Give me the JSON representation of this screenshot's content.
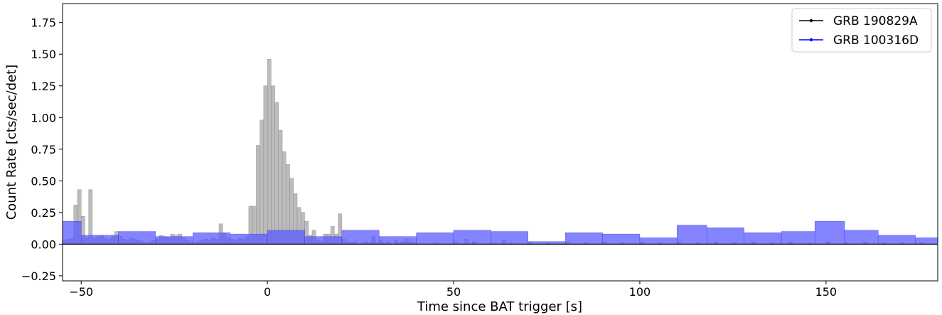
{
  "chart_data": {
    "type": "area",
    "xlabel": "Time since BAT trigger [s]",
    "ylabel": "Count Rate [cts/sec/det]",
    "xlim": [
      -55,
      180
    ],
    "ylim": [
      -0.29,
      1.9
    ],
    "xticks": [
      -50,
      0,
      50,
      100,
      150
    ],
    "xtick_labels": [
      "−50",
      "0",
      "50",
      "100",
      "150"
    ],
    "yticks": [
      -0.25,
      0,
      0.25,
      0.5,
      0.75,
      1.0,
      1.25,
      1.5,
      1.75
    ],
    "ytick_labels": [
      "−0.25",
      "0.00",
      "0.25",
      "0.50",
      "0.75",
      "1.00",
      "1.25",
      "1.50",
      "1.75"
    ],
    "grid": false,
    "legend_position": "top-right",
    "series": [
      {
        "name": "GRB 190829A",
        "fill_color": "#a0a0a0",
        "line_color": "#000000",
        "bin_width": 1.024,
        "bins": [
          [
            -55,
            0.03
          ],
          [
            -54,
            0.04
          ],
          [
            -53,
            0.05
          ],
          [
            -52,
            0.31
          ],
          [
            -51,
            0.43
          ],
          [
            -50,
            0.22
          ],
          [
            -49,
            0.05
          ],
          [
            -48,
            0.43
          ],
          [
            -47,
            0.05
          ],
          [
            -46,
            0.06
          ],
          [
            -45,
            0.07
          ],
          [
            -44,
            0.05
          ],
          [
            -43,
            0.04
          ],
          [
            -42,
            0.06
          ],
          [
            -41,
            0.1
          ],
          [
            -40,
            0.06
          ],
          [
            -39,
            0.04
          ],
          [
            -38,
            0.03
          ],
          [
            -37,
            0.05
          ],
          [
            -36,
            0.04
          ],
          [
            -35,
            0.03
          ],
          [
            -34,
            0.02
          ],
          [
            -33,
            0.01
          ],
          [
            -32,
            0.02
          ],
          [
            -31,
            0.03
          ],
          [
            -30,
            0.04
          ],
          [
            -29,
            0.07
          ],
          [
            -28,
            0.06
          ],
          [
            -27,
            0.05
          ],
          [
            -26,
            0.08
          ],
          [
            -25,
            0.07
          ],
          [
            -24,
            0.08
          ],
          [
            -23,
            0.05
          ],
          [
            -22,
            0.03
          ],
          [
            -21,
            0.02
          ],
          [
            -20,
            0.01
          ],
          [
            -19,
            0.02
          ],
          [
            -18,
            0.03
          ],
          [
            -17,
            0.04
          ],
          [
            -16,
            0.03
          ],
          [
            -15,
            0.05
          ],
          [
            -14,
            0.04
          ],
          [
            -13,
            0.16
          ],
          [
            -12,
            0.09
          ],
          [
            -11,
            0.05
          ],
          [
            -10,
            0.04
          ],
          [
            -9,
            0.03
          ],
          [
            -8,
            0.05
          ],
          [
            -7,
            0.04
          ],
          [
            -6,
            0.06
          ],
          [
            -5,
            0.3
          ],
          [
            -4,
            0.3
          ],
          [
            -3,
            0.78
          ],
          [
            -2,
            0.98
          ],
          [
            -1,
            1.25
          ],
          [
            0,
            1.46
          ],
          [
            1,
            1.25
          ],
          [
            2,
            1.12
          ],
          [
            3,
            0.9
          ],
          [
            4,
            0.73
          ],
          [
            5,
            0.63
          ],
          [
            6,
            0.52
          ],
          [
            7,
            0.4
          ],
          [
            8,
            0.29
          ],
          [
            9,
            0.25
          ],
          [
            10,
            0.18
          ],
          [
            11,
            0.07
          ],
          [
            12,
            0.11
          ],
          [
            13,
            0.03
          ],
          [
            14,
            0.02
          ],
          [
            15,
            0.08
          ],
          [
            16,
            0.08
          ],
          [
            17,
            0.14
          ],
          [
            18,
            0.08
          ],
          [
            19,
            0.24
          ],
          [
            20,
            0.04
          ],
          [
            21,
            0.02
          ],
          [
            22,
            0.01
          ],
          [
            23,
            0.02
          ],
          [
            24,
            0.0
          ],
          [
            25,
            0.01
          ],
          [
            26,
            0.02
          ],
          [
            27,
            0.01
          ],
          [
            28,
            0.06
          ],
          [
            29,
            0.01
          ],
          [
            30,
            0.03
          ],
          [
            31,
            0.01
          ],
          [
            32,
            0.02
          ],
          [
            33,
            0.0
          ],
          [
            34,
            0.03
          ],
          [
            35,
            0.01
          ],
          [
            36,
            0.02
          ],
          [
            37,
            0.04
          ],
          [
            38,
            0.02
          ],
          [
            39,
            0.01
          ],
          [
            40,
            0.0
          ],
          [
            45,
            0.01
          ],
          [
            50,
            0.02
          ],
          [
            53,
            0.04
          ],
          [
            55,
            0.02
          ],
          [
            60,
            0.01
          ],
          [
            63,
            0.03
          ],
          [
            65,
            0.01
          ],
          [
            70,
            0.02
          ],
          [
            75,
            0.01
          ],
          [
            80,
            0.02
          ],
          [
            85,
            0.01
          ],
          [
            90,
            0.02
          ],
          [
            95,
            0.01
          ],
          [
            100,
            0.02
          ],
          [
            105,
            0.01
          ],
          [
            110,
            0.02
          ],
          [
            115,
            0.01
          ],
          [
            120,
            0.02
          ],
          [
            125,
            0.01
          ],
          [
            130,
            0.02
          ],
          [
            135,
            0.01
          ],
          [
            140,
            0.02
          ],
          [
            145,
            0.01
          ],
          [
            150,
            0.02
          ],
          [
            155,
            0.01
          ],
          [
            160,
            0.02
          ],
          [
            165,
            0.01
          ],
          [
            170,
            0.01
          ],
          [
            175,
            0.01
          ]
        ]
      },
      {
        "name": "GRB 100316D",
        "fill_color": "#5b5bff",
        "line_color": "#0000ff",
        "bins": [
          [
            -55,
            -50,
            0.18
          ],
          [
            -50,
            -40,
            0.07
          ],
          [
            -40,
            -30,
            0.1
          ],
          [
            -30,
            -20,
            0.06
          ],
          [
            -20,
            -10,
            0.09
          ],
          [
            -10,
            0,
            0.08
          ],
          [
            0,
            10,
            0.11
          ],
          [
            10,
            20,
            0.06
          ],
          [
            20,
            30,
            0.11
          ],
          [
            30,
            40,
            0.06
          ],
          [
            40,
            50,
            0.09
          ],
          [
            50,
            60,
            0.11
          ],
          [
            60,
            70,
            0.1
          ],
          [
            70,
            80,
            0.02
          ],
          [
            80,
            90,
            0.09
          ],
          [
            90,
            100,
            0.08
          ],
          [
            100,
            110,
            0.05
          ],
          [
            110,
            118,
            0.15
          ],
          [
            118,
            128,
            0.13
          ],
          [
            128,
            138,
            0.09
          ],
          [
            138,
            147,
            0.1
          ],
          [
            147,
            155,
            0.18
          ],
          [
            155,
            164,
            0.11
          ],
          [
            164,
            174,
            0.07
          ],
          [
            174,
            180,
            0.05
          ]
        ]
      }
    ]
  }
}
